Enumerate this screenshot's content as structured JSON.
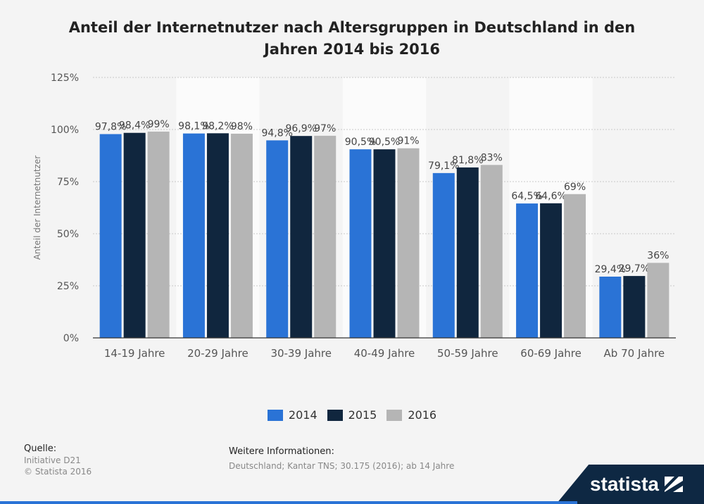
{
  "title": "Anteil der Internetnutzer nach Altersgruppen in Deutschland in den Jahren 2014 bis 2016",
  "chart_data": {
    "type": "bar",
    "categories": [
      "14-19 Jahre",
      "20-29 Jahre",
      "30-39 Jahre",
      "40-49 Jahre",
      "50-59 Jahre",
      "60-69 Jahre",
      "Ab 70 Jahre"
    ],
    "series": [
      {
        "name": "2014",
        "color": "#2a73d6",
        "values": [
          97.8,
          98.1,
          94.8,
          90.5,
          79.1,
          64.5,
          29.4
        ],
        "labels": [
          "97,8%",
          "98,1%",
          "94,8%",
          "90,5%",
          "79,1%",
          "64,5%",
          "29,4%"
        ]
      },
      {
        "name": "2015",
        "color": "#10263e",
        "values": [
          98.4,
          98.2,
          96.9,
          90.5,
          81.8,
          64.6,
          29.7
        ],
        "labels": [
          "98,4%",
          "98,2%",
          "96,9%",
          "90,5%",
          "81,8%",
          "64,6%",
          "29,7%"
        ]
      },
      {
        "name": "2016",
        "color": "#b5b5b5",
        "values": [
          99,
          98,
          97,
          91,
          83,
          69,
          36
        ],
        "labels": [
          "99%",
          "98%",
          "97%",
          "91%",
          "83%",
          "69%",
          "36%"
        ]
      }
    ],
    "ylabel": "Anteil der Internetnutzer",
    "ylim": [
      0,
      125
    ],
    "yticks": [
      0,
      25,
      50,
      75,
      100,
      125
    ],
    "ytick_labels": [
      "0%",
      "25%",
      "50%",
      "75%",
      "100%",
      "125%"
    ],
    "grid": true,
    "legend": "bottom"
  },
  "footer": {
    "source_label": "Quelle:",
    "source_lines": [
      "Initiative D21",
      "© Statista 2016"
    ],
    "info_label": "Weitere Informationen:",
    "info_text": "Deutschland; Kantar TNS; 30.175 (2016); ab 14 Jahre"
  },
  "brand": "statista"
}
